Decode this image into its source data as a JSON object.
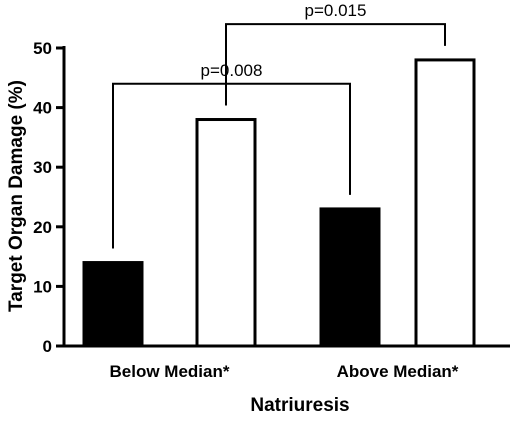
{
  "chart_data": {
    "type": "bar",
    "title": "",
    "xlabel": "Natriuresis",
    "ylabel": "Target Organ Damage (%)",
    "ylim": [
      0,
      50
    ],
    "yticks": [
      0,
      10,
      20,
      30,
      40,
      50
    ],
    "grid": false,
    "categories": [
      "Below Median*",
      "Above Median*"
    ],
    "series": [
      {
        "fill": "#000000",
        "values": [
          14,
          23
        ]
      },
      {
        "fill": "#ffffff",
        "values": [
          38,
          48
        ]
      }
    ],
    "annotations": [
      {
        "text": "p=0.015",
        "from": {
          "category": 0,
          "series": 1
        },
        "to": {
          "category": 1,
          "series": 1
        },
        "level": 54
      },
      {
        "text": "p=0.008",
        "from": {
          "category": 0,
          "series": 0
        },
        "to": {
          "category": 1,
          "series": 0
        },
        "level": 44
      }
    ]
  }
}
